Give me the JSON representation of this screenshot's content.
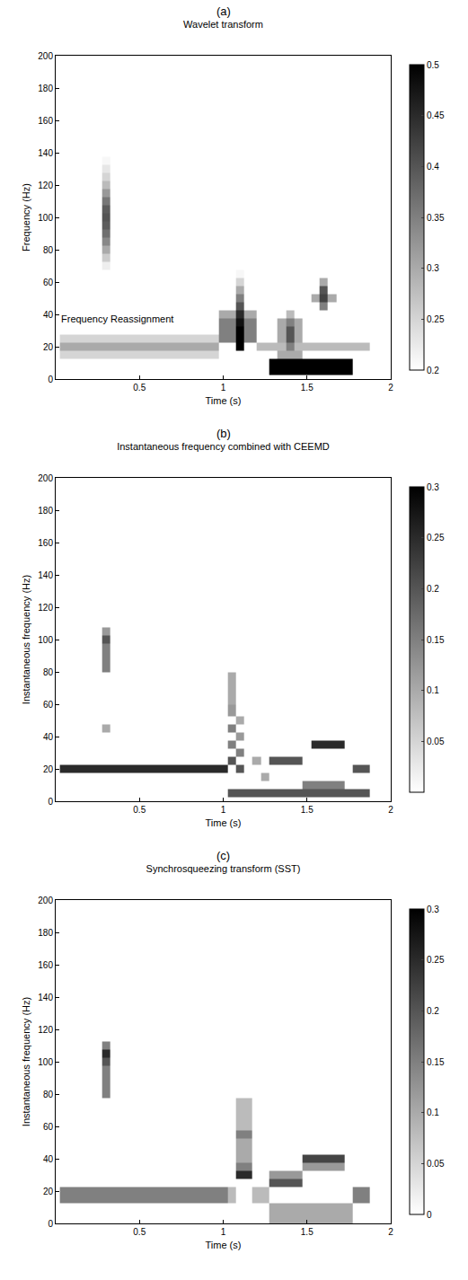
{
  "chart_data": [
    {
      "type": "heatmap",
      "panel": "(a)",
      "title": "Wavelet transform",
      "x_label": "Time (s)",
      "y_label": "Frequency (Hz)",
      "xlim": [
        0,
        2
      ],
      "xticks": [
        0.5,
        1,
        1.5,
        2
      ],
      "ylim": [
        0,
        200
      ],
      "yticks": [
        0,
        20,
        40,
        60,
        80,
        100,
        120,
        140,
        160,
        180,
        200
      ],
      "grid": false,
      "colorbar": {
        "range": [
          0.2,
          0.5
        ],
        "ticks": [
          0.2,
          0.25,
          0.3,
          0.35,
          0.4,
          0.45,
          0.5
        ]
      },
      "annotations": [
        {
          "text": "Frequency Reassignment",
          "x": 0.02,
          "y": 37
        }
      ],
      "cells": [
        [
          0.05,
          15,
          0.25
        ],
        [
          0.05,
          20,
          0.3
        ],
        [
          0.05,
          25,
          0.25
        ],
        [
          0.1,
          15,
          0.25
        ],
        [
          0.1,
          20,
          0.3
        ],
        [
          0.1,
          25,
          0.25
        ],
        [
          0.15,
          15,
          0.25
        ],
        [
          0.15,
          20,
          0.3
        ],
        [
          0.15,
          25,
          0.25
        ],
        [
          0.2,
          15,
          0.25
        ],
        [
          0.2,
          20,
          0.3
        ],
        [
          0.2,
          25,
          0.25
        ],
        [
          0.25,
          15,
          0.25
        ],
        [
          0.25,
          20,
          0.3
        ],
        [
          0.25,
          25,
          0.25
        ],
        [
          0.3,
          15,
          0.25
        ],
        [
          0.3,
          20,
          0.3
        ],
        [
          0.3,
          25,
          0.25
        ],
        [
          0.35,
          15,
          0.25
        ],
        [
          0.35,
          20,
          0.3
        ],
        [
          0.35,
          25,
          0.25
        ],
        [
          0.4,
          15,
          0.25
        ],
        [
          0.4,
          20,
          0.3
        ],
        [
          0.4,
          25,
          0.25
        ],
        [
          0.45,
          15,
          0.25
        ],
        [
          0.45,
          20,
          0.3
        ],
        [
          0.45,
          25,
          0.25
        ],
        [
          0.5,
          15,
          0.25
        ],
        [
          0.5,
          20,
          0.3
        ],
        [
          0.5,
          25,
          0.25
        ],
        [
          0.55,
          15,
          0.25
        ],
        [
          0.55,
          20,
          0.3
        ],
        [
          0.55,
          25,
          0.25
        ],
        [
          0.6,
          15,
          0.25
        ],
        [
          0.6,
          20,
          0.3
        ],
        [
          0.6,
          25,
          0.25
        ],
        [
          0.65,
          15,
          0.25
        ],
        [
          0.65,
          20,
          0.3
        ],
        [
          0.65,
          25,
          0.25
        ],
        [
          0.7,
          15,
          0.25
        ],
        [
          0.7,
          20,
          0.3
        ],
        [
          0.7,
          25,
          0.25
        ],
        [
          0.75,
          15,
          0.25
        ],
        [
          0.75,
          20,
          0.3
        ],
        [
          0.75,
          25,
          0.25
        ],
        [
          0.8,
          15,
          0.25
        ],
        [
          0.8,
          20,
          0.3
        ],
        [
          0.8,
          25,
          0.25
        ],
        [
          0.85,
          15,
          0.25
        ],
        [
          0.85,
          20,
          0.3
        ],
        [
          0.85,
          25,
          0.25
        ],
        [
          0.9,
          15,
          0.25
        ],
        [
          0.9,
          20,
          0.3
        ],
        [
          0.9,
          25,
          0.25
        ],
        [
          0.3,
          70,
          0.22
        ],
        [
          0.3,
          75,
          0.26
        ],
        [
          0.3,
          80,
          0.3
        ],
        [
          0.3,
          85,
          0.34
        ],
        [
          0.3,
          90,
          0.37
        ],
        [
          0.3,
          95,
          0.39
        ],
        [
          0.3,
          100,
          0.4
        ],
        [
          0.3,
          105,
          0.39
        ],
        [
          0.3,
          110,
          0.36
        ],
        [
          0.3,
          115,
          0.32
        ],
        [
          0.3,
          120,
          0.28
        ],
        [
          0.3,
          125,
          0.25
        ],
        [
          0.3,
          130,
          0.23
        ],
        [
          0.3,
          135,
          0.21
        ],
        [
          0.3,
          140,
          0.2
        ],
        [
          1.05,
          25,
          0.35
        ],
        [
          1.05,
          30,
          0.35
        ],
        [
          1.05,
          35,
          0.35
        ],
        [
          1.05,
          40,
          0.3
        ],
        [
          1.1,
          20,
          0.5
        ],
        [
          1.1,
          25,
          0.5
        ],
        [
          1.1,
          30,
          0.5
        ],
        [
          1.1,
          35,
          0.48
        ],
        [
          1.1,
          40,
          0.45
        ],
        [
          1.1,
          45,
          0.4
        ],
        [
          1.1,
          50,
          0.35
        ],
        [
          1.1,
          55,
          0.3
        ],
        [
          1.1,
          60,
          0.25
        ],
        [
          1.1,
          65,
          0.21
        ],
        [
          1.15,
          25,
          0.35
        ],
        [
          1.15,
          30,
          0.35
        ],
        [
          1.15,
          35,
          0.35
        ],
        [
          1.15,
          40,
          0.3
        ],
        [
          1.25,
          20,
          0.28
        ],
        [
          1.3,
          20,
          0.28
        ],
        [
          1.3,
          5,
          0.5
        ],
        [
          1.3,
          10,
          0.5
        ],
        [
          1.35,
          5,
          0.5
        ],
        [
          1.35,
          10,
          0.5
        ],
        [
          1.4,
          5,
          0.5
        ],
        [
          1.4,
          10,
          0.5
        ],
        [
          1.45,
          5,
          0.5
        ],
        [
          1.45,
          10,
          0.5
        ],
        [
          1.5,
          5,
          0.5
        ],
        [
          1.5,
          10,
          0.5
        ],
        [
          1.55,
          5,
          0.5
        ],
        [
          1.55,
          10,
          0.5
        ],
        [
          1.6,
          5,
          0.5
        ],
        [
          1.6,
          10,
          0.5
        ],
        [
          1.65,
          5,
          0.5
        ],
        [
          1.65,
          10,
          0.5
        ],
        [
          1.7,
          5,
          0.5
        ],
        [
          1.7,
          10,
          0.5
        ],
        [
          1.75,
          5,
          0.5
        ],
        [
          1.75,
          10,
          0.5
        ],
        [
          1.35,
          15,
          0.3
        ],
        [
          1.4,
          15,
          0.3
        ],
        [
          1.45,
          15,
          0.3
        ],
        [
          1.35,
          20,
          0.28
        ],
        [
          1.35,
          25,
          0.3
        ],
        [
          1.35,
          30,
          0.3
        ],
        [
          1.35,
          35,
          0.3
        ],
        [
          1.4,
          20,
          0.35
        ],
        [
          1.4,
          25,
          0.4
        ],
        [
          1.4,
          30,
          0.4
        ],
        [
          1.4,
          35,
          0.35
        ],
        [
          1.4,
          40,
          0.28
        ],
        [
          1.45,
          20,
          0.28
        ],
        [
          1.45,
          25,
          0.3
        ],
        [
          1.45,
          30,
          0.3
        ],
        [
          1.45,
          35,
          0.3
        ],
        [
          1.5,
          20,
          0.28
        ],
        [
          1.55,
          20,
          0.28
        ],
        [
          1.6,
          20,
          0.28
        ],
        [
          1.65,
          20,
          0.28
        ],
        [
          1.7,
          20,
          0.28
        ],
        [
          1.75,
          20,
          0.28
        ],
        [
          1.8,
          20,
          0.28
        ],
        [
          1.85,
          20,
          0.28
        ],
        [
          1.55,
          50,
          0.3
        ],
        [
          1.6,
          45,
          0.35
        ],
        [
          1.6,
          50,
          0.42
        ],
        [
          1.6,
          55,
          0.4
        ],
        [
          1.6,
          60,
          0.3
        ],
        [
          1.65,
          50,
          0.3
        ]
      ]
    },
    {
      "type": "heatmap",
      "panel": "(b)",
      "title": "Instantaneous frequency combined with CEEMD",
      "x_label": "Time (s)",
      "y_label": "Instantaneous frequency (Hz)",
      "xlim": [
        0,
        2
      ],
      "xticks": [
        0.5,
        1,
        1.5,
        2
      ],
      "ylim": [
        0,
        200
      ],
      "yticks": [
        0,
        20,
        40,
        60,
        80,
        100,
        120,
        140,
        160,
        180,
        200
      ],
      "grid": false,
      "colorbar": {
        "range": [
          0,
          0.3
        ],
        "ticks": [
          0.05,
          0.1,
          0.15,
          0.2,
          0.25,
          0.3
        ]
      },
      "cells": [
        [
          0.05,
          20,
          0.25
        ],
        [
          0.1,
          20,
          0.25
        ],
        [
          0.15,
          20,
          0.25
        ],
        [
          0.2,
          20,
          0.25
        ],
        [
          0.25,
          20,
          0.25
        ],
        [
          0.3,
          20,
          0.25
        ],
        [
          0.35,
          20,
          0.25
        ],
        [
          0.4,
          20,
          0.25
        ],
        [
          0.45,
          20,
          0.25
        ],
        [
          0.5,
          20,
          0.25
        ],
        [
          0.55,
          20,
          0.25
        ],
        [
          0.6,
          20,
          0.25
        ],
        [
          0.65,
          20,
          0.25
        ],
        [
          0.7,
          20,
          0.25
        ],
        [
          0.75,
          20,
          0.25
        ],
        [
          0.8,
          20,
          0.25
        ],
        [
          0.85,
          20,
          0.25
        ],
        [
          0.9,
          20,
          0.25
        ],
        [
          0.95,
          20,
          0.25
        ],
        [
          1.0,
          20,
          0.25
        ],
        [
          0.3,
          45,
          0.1
        ],
        [
          0.3,
          95,
          0.15
        ],
        [
          0.3,
          100,
          0.2
        ],
        [
          0.3,
          105,
          0.12
        ],
        [
          1.05,
          25,
          0.2
        ],
        [
          1.05,
          35,
          0.15
        ],
        [
          1.05,
          45,
          0.15
        ],
        [
          1.05,
          55,
          0.12
        ],
        [
          1.05,
          65,
          0.1
        ],
        [
          1.1,
          20,
          0.2
        ],
        [
          1.1,
          30,
          0.15
        ],
        [
          1.1,
          40,
          0.12
        ],
        [
          1.1,
          50,
          0.1
        ],
        [
          1.05,
          5,
          0.2
        ],
        [
          1.1,
          5,
          0.2
        ],
        [
          1.15,
          5,
          0.2
        ],
        [
          1.2,
          5,
          0.2
        ],
        [
          1.25,
          5,
          0.2
        ],
        [
          1.3,
          5,
          0.2
        ],
        [
          1.35,
          5,
          0.2
        ],
        [
          1.4,
          5,
          0.2
        ],
        [
          1.45,
          5,
          0.2
        ],
        [
          1.5,
          5,
          0.2
        ],
        [
          1.55,
          5,
          0.2
        ],
        [
          1.6,
          5,
          0.2
        ],
        [
          1.65,
          5,
          0.2
        ],
        [
          1.7,
          5,
          0.2
        ],
        [
          1.75,
          5,
          0.2
        ],
        [
          1.8,
          5,
          0.2
        ],
        [
          1.85,
          5,
          0.2
        ],
        [
          1.5,
          10,
          0.15
        ],
        [
          1.55,
          10,
          0.15
        ],
        [
          1.6,
          10,
          0.15
        ],
        [
          1.65,
          10,
          0.15
        ],
        [
          1.7,
          10,
          0.15
        ],
        [
          1.2,
          25,
          0.1
        ],
        [
          1.25,
          15,
          0.1
        ],
        [
          1.3,
          25,
          0.2
        ],
        [
          1.35,
          25,
          0.2
        ],
        [
          1.4,
          25,
          0.2
        ],
        [
          1.45,
          25,
          0.2
        ],
        [
          1.55,
          35,
          0.25
        ],
        [
          1.6,
          35,
          0.25
        ],
        [
          1.65,
          35,
          0.25
        ],
        [
          1.7,
          35,
          0.25
        ],
        [
          1.8,
          20,
          0.2
        ],
        [
          1.85,
          20,
          0.2
        ]
      ]
    },
    {
      "type": "heatmap",
      "panel": "(c)",
      "title": "Synchrosqueezing transform (SST)",
      "x_label": "Time (s)",
      "y_label": "Instantaneous frequency (Hz)",
      "xlim": [
        0,
        2
      ],
      "xticks": [
        0.5,
        1,
        1.5,
        2
      ],
      "ylim": [
        0,
        200
      ],
      "yticks": [
        0,
        20,
        40,
        60,
        80,
        100,
        120,
        140,
        160,
        180,
        200
      ],
      "grid": false,
      "colorbar": {
        "range": [
          0,
          0.3
        ],
        "ticks": [
          0,
          0.05,
          0.1,
          0.15,
          0.2,
          0.25,
          0.3
        ]
      },
      "cells": [
        [
          0.05,
          20,
          0.15
        ],
        [
          0.1,
          20,
          0.15
        ],
        [
          0.15,
          20,
          0.15
        ],
        [
          0.2,
          20,
          0.15
        ],
        [
          0.25,
          20,
          0.15
        ],
        [
          0.3,
          20,
          0.15
        ],
        [
          0.35,
          20,
          0.15
        ],
        [
          0.4,
          20,
          0.15
        ],
        [
          0.45,
          20,
          0.15
        ],
        [
          0.5,
          20,
          0.15
        ],
        [
          0.55,
          20,
          0.15
        ],
        [
          0.6,
          20,
          0.15
        ],
        [
          0.65,
          20,
          0.15
        ],
        [
          0.7,
          20,
          0.15
        ],
        [
          0.75,
          20,
          0.15
        ],
        [
          0.8,
          20,
          0.15
        ],
        [
          0.85,
          20,
          0.15
        ],
        [
          0.9,
          20,
          0.15
        ],
        [
          0.95,
          20,
          0.15
        ],
        [
          1.0,
          20,
          0.15
        ],
        [
          0.3,
          95,
          0.15
        ],
        [
          0.3,
          100,
          0.2
        ],
        [
          0.3,
          105,
          0.25
        ],
        [
          0.3,
          110,
          0.15
        ],
        [
          1.05,
          20,
          0.08
        ],
        [
          1.1,
          30,
          0.25
        ],
        [
          1.1,
          35,
          0.15
        ],
        [
          1.1,
          40,
          0.1
        ],
        [
          1.1,
          45,
          0.1
        ],
        [
          1.1,
          50,
          0.1
        ],
        [
          1.1,
          55,
          0.15
        ],
        [
          1.1,
          60,
          0.08
        ],
        [
          1.25,
          20,
          0.08
        ],
        [
          1.3,
          25,
          0.2
        ],
        [
          1.35,
          25,
          0.2
        ],
        [
          1.4,
          25,
          0.2
        ],
        [
          1.45,
          25,
          0.2
        ],
        [
          1.3,
          30,
          0.12
        ],
        [
          1.35,
          30,
          0.12
        ],
        [
          1.4,
          30,
          0.12
        ],
        [
          1.45,
          30,
          0.12
        ],
        [
          1.5,
          40,
          0.22
        ],
        [
          1.55,
          40,
          0.22
        ],
        [
          1.6,
          40,
          0.22
        ],
        [
          1.65,
          40,
          0.22
        ],
        [
          1.7,
          40,
          0.22
        ],
        [
          1.5,
          35,
          0.12
        ],
        [
          1.55,
          35,
          0.12
        ],
        [
          1.6,
          35,
          0.12
        ],
        [
          1.65,
          35,
          0.12
        ],
        [
          1.7,
          35,
          0.12
        ],
        [
          1.3,
          5,
          0.1
        ],
        [
          1.35,
          5,
          0.1
        ],
        [
          1.4,
          5,
          0.1
        ],
        [
          1.45,
          5,
          0.1
        ],
        [
          1.5,
          5,
          0.1
        ],
        [
          1.55,
          5,
          0.1
        ],
        [
          1.6,
          5,
          0.1
        ],
        [
          1.65,
          5,
          0.1
        ],
        [
          1.7,
          5,
          0.1
        ],
        [
          1.75,
          5,
          0.1
        ],
        [
          1.8,
          20,
          0.15
        ],
        [
          1.85,
          20,
          0.15
        ]
      ]
    }
  ]
}
